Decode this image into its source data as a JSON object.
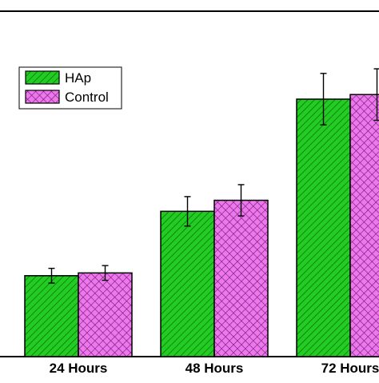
{
  "chart_data": {
    "type": "bar",
    "categories": [
      "24 Hours",
      "48 Hours",
      "72 Hours"
    ],
    "series": [
      {
        "name": "HAp",
        "values": [
          0.88,
          1.58,
          2.8
        ],
        "errors": [
          0.08,
          0.16,
          0.28
        ],
        "color": "#22cc22",
        "hatch": "diagonal"
      },
      {
        "name": "Control",
        "values": [
          0.91,
          1.7,
          2.85
        ],
        "errors": [
          0.08,
          0.17,
          0.28
        ],
        "color": "#ee77ee",
        "hatch": "crosshatch"
      }
    ],
    "legend_position": "top-left",
    "grid": false,
    "title": "",
    "xlabel": "",
    "ylabel": "",
    "ylim": [
      0,
      4
    ]
  }
}
